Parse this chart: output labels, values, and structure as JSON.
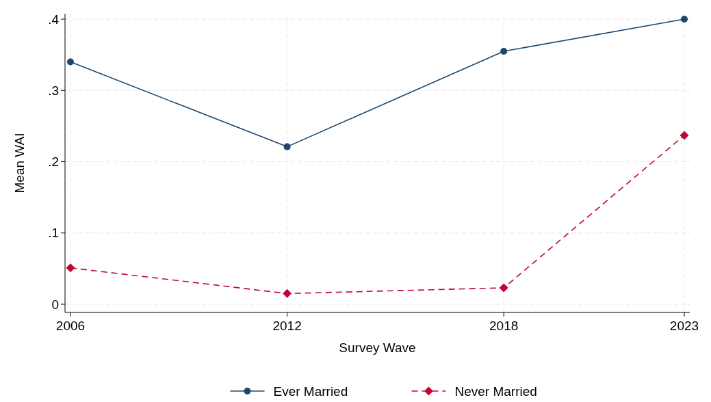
{
  "chart_data": {
    "type": "line",
    "xlabel": "Survey Wave",
    "ylabel": "Mean WAI",
    "x": [
      2006,
      2012,
      2018,
      2023
    ],
    "series": [
      {
        "name": "Ever Married",
        "color": "#1a476f",
        "values": [
          0.34,
          0.221,
          0.355,
          0.4
        ],
        "marker": "circle",
        "line_style": "solid"
      },
      {
        "name": "Never Married",
        "color": "#c10534",
        "values": [
          0.051,
          0.015,
          0.023,
          0.237
        ],
        "marker": "diamond",
        "line_style": "dashed"
      }
    ],
    "xlim": [
      2006,
      2023
    ],
    "xticks": [
      2006,
      2012,
      2018,
      2023
    ],
    "ylim": [
      0,
      0.4
    ],
    "yticks": [
      {
        "value": 0,
        "label": "0"
      },
      {
        "value": 0.1,
        "label": ".1"
      },
      {
        "value": 0.2,
        "label": ".2"
      },
      {
        "value": 0.3,
        "label": ".3"
      },
      {
        "value": 0.4,
        "label": ".4"
      }
    ],
    "grid": true,
    "legend": "bottom"
  }
}
